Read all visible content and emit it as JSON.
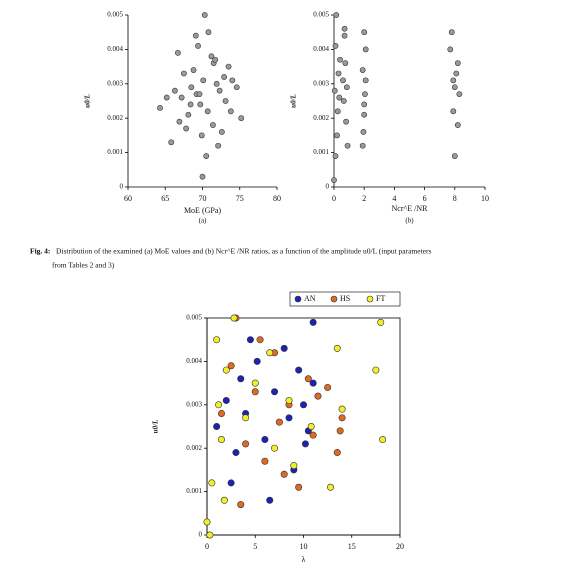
{
  "chart_data": [
    {
      "type": "scatter",
      "panel_label": "(a)",
      "xlabel": "MoE (GPa)",
      "ylabel": "u0/L",
      "color": "#9a9a9a",
      "xlim": [
        60,
        80
      ],
      "xticks": [
        60,
        65,
        70,
        75,
        80
      ],
      "ylim": [
        0,
        0.005
      ],
      "yticks": [
        0,
        0.001,
        0.002,
        0.003,
        0.004,
        0.005
      ],
      "x": [
        70.1,
        68.4,
        72.3,
        66.9,
        71.5,
        69.2,
        73.8,
        67.5,
        70.8,
        65.2,
        74.6,
        69.9,
        71.2,
        68.1,
        72.9,
        66.3,
        70.5,
        69.4,
        73.1,
        67.8,
        71.9,
        64.3,
        75.2,
        70.3,
        68.8,
        72.1,
        69.6,
        66.7,
        71.4,
        70.0,
        73.5,
        67.2,
        69.1,
        72.6,
        68.5,
        70.7,
        74.0,
        65.8,
        71.7,
        69.7
      ],
      "values": [
        0.0031,
        0.0024,
        0.0028,
        0.0019,
        0.0036,
        0.0027,
        0.0022,
        0.0033,
        0.0045,
        0.0026,
        0.0029,
        0.0015,
        0.0038,
        0.0021,
        0.0032,
        0.0028,
        0.0009,
        0.0041,
        0.0025,
        0.0017,
        0.003,
        0.0023,
        0.002,
        0.005,
        0.0034,
        0.0012,
        0.0027,
        0.0039,
        0.0018,
        0.0003,
        0.0035,
        0.0026,
        0.0044,
        0.0016,
        0.0029,
        0.0022,
        0.0031,
        0.0013,
        0.0037,
        0.0024
      ]
    },
    {
      "type": "scatter",
      "panel_label": "(b)",
      "xlabel": "Ncr^E /NR",
      "ylabel": "u0/L",
      "color": "#9a9a9a",
      "xlim": [
        0,
        10
      ],
      "xticks": [
        0,
        2,
        4,
        6,
        8,
        10
      ],
      "ylim": [
        0,
        0.005
      ],
      "yticks": [
        0,
        0.001,
        0.002,
        0.003,
        0.004,
        0.005
      ],
      "x": [
        0.05,
        0.1,
        0.2,
        0.3,
        0.15,
        0.25,
        0.4,
        0.0,
        0.35,
        0.1,
        0.6,
        0.7,
        0.8,
        0.65,
        0.75,
        0.9,
        0.7,
        0.85,
        1.9,
        2.0,
        2.1,
        1.95,
        2.05,
        2.0,
        1.9,
        2.1,
        2.0,
        7.8,
        8.0,
        8.2,
        7.9,
        8.1,
        8.3,
        7.7,
        8.0,
        8.2,
        7.9
      ],
      "values": [
        0.0028,
        0.0041,
        0.0015,
        0.0033,
        0.005,
        0.0022,
        0.0037,
        0.0002,
        0.0026,
        0.0009,
        0.0031,
        0.0044,
        0.0019,
        0.0025,
        0.0036,
        0.0012,
        0.0046,
        0.0029,
        0.0034,
        0.0021,
        0.004,
        0.0016,
        0.0027,
        0.0045,
        0.0012,
        0.0031,
        0.0024,
        0.0045,
        0.0029,
        0.0036,
        0.0022,
        0.0033,
        0.0027,
        0.004,
        0.0009,
        0.0018,
        0.0031
      ]
    },
    {
      "type": "scatter",
      "xlabel": "λ",
      "ylabel": "u0/L",
      "legend": "top-right",
      "xlim": [
        0,
        20
      ],
      "xticks": [
        0,
        5,
        10,
        15,
        20
      ],
      "ylim": [
        0,
        0.005
      ],
      "yticks": [
        0,
        0.001,
        0.002,
        0.003,
        0.004,
        0.005
      ],
      "series": [
        {
          "name": "AN",
          "color": "#1c22b4",
          "x": [
            1,
            2,
            3,
            3.5,
            4,
            5.2,
            6,
            7,
            8,
            8.5,
            9,
            10,
            10.5,
            11,
            11,
            2.5,
            4.5,
            6.5,
            9.5,
            10.2
          ],
          "values": [
            0.0025,
            0.0031,
            0.0019,
            0.0036,
            0.0028,
            0.004,
            0.0022,
            0.0033,
            0.0043,
            0.0027,
            0.0015,
            0.003,
            0.0024,
            0.0049,
            0.0035,
            0.0012,
            0.0045,
            0.0008,
            0.0038,
            0.0021
          ]
        },
        {
          "name": "HS",
          "color": "#e06a22",
          "x": [
            1.5,
            2.5,
            3,
            4,
            5,
            6,
            7,
            7.5,
            8.5,
            9.5,
            10.5,
            11,
            12.5,
            13.5,
            14,
            3.5,
            5.5,
            8,
            11.5,
            13.8
          ],
          "values": [
            0.0028,
            0.0039,
            0.005,
            0.0021,
            0.0033,
            0.0017,
            0.0042,
            0.0026,
            0.003,
            0.0011,
            0.0036,
            0.0023,
            0.0034,
            0.0019,
            0.0027,
            0.0007,
            0.0045,
            0.0014,
            0.0032,
            0.0024
          ]
        },
        {
          "name": "FT",
          "color": "#f2ee2a",
          "x": [
            0,
            0.5,
            1,
            1.2,
            1.5,
            2,
            2.8,
            4,
            5,
            6.5,
            7,
            8.5,
            9,
            10.8,
            13.5,
            14,
            17.5,
            18,
            18.2,
            0.3,
            1.8,
            12.8
          ],
          "values": [
            0.0003,
            0.0012,
            0.0045,
            0.003,
            0.0022,
            0.0038,
            0.005,
            0.0027,
            0.0035,
            0.0042,
            0.002,
            0.0031,
            0.0016,
            0.0025,
            0.0043,
            0.0029,
            0.0038,
            0.0049,
            0.0022,
            0.0,
            0.0008,
            0.0011
          ]
        }
      ]
    }
  ],
  "caption": {
    "label": "Fig. 4:",
    "lines": [
      "Distribution of the examined (a) MoE values and (b) Ncr^E /NR ratios, as a function of the amplitude u0/L (input parameters",
      "from Tables 2 and 3)"
    ]
  }
}
